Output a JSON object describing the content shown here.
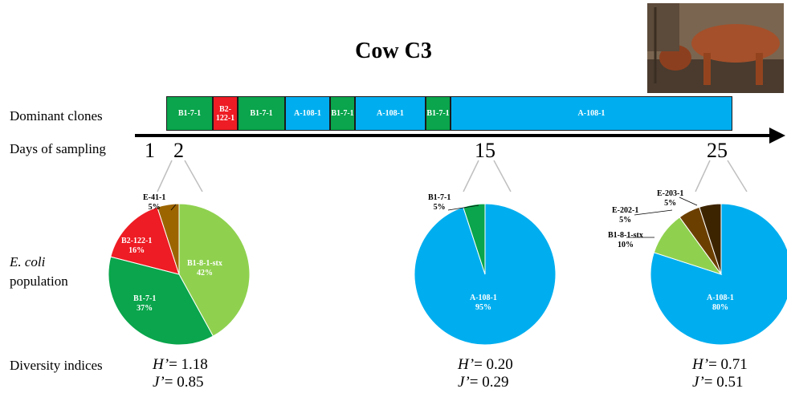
{
  "title": "Cow C3",
  "row_labels": {
    "dominant_clones": "Dominant clones",
    "days_of_sampling": "Days of sampling",
    "ecoli_italic": "E. coli",
    "population": "population",
    "diversity_indices": "Diversity indices"
  },
  "colors": {
    "green": "#0aa54c",
    "red": "#ee1c24",
    "blue": "#00aeef",
    "light_green": "#8fd14f",
    "brown": "#9c6500",
    "dark_brown": "#6b3f00",
    "darkest_brown": "#3d2400"
  },
  "clones": [
    {
      "label": "B1-7-1",
      "color": "green"
    },
    {
      "label": "B2-122-1",
      "color": "red"
    },
    {
      "label": "B1-7-1",
      "color": "green"
    },
    {
      "label": "A-108-1",
      "color": "blue"
    },
    {
      "label": "B1-7-1",
      "color": "green"
    },
    {
      "label": "A-108-1",
      "color": "blue"
    },
    {
      "label": "B1-7-1",
      "color": "green"
    },
    {
      "label": "A-108-1",
      "color": "blue"
    }
  ],
  "days": [
    "1",
    "2",
    "15",
    "25"
  ],
  "pies": [
    {
      "day": "2",
      "slices": [
        {
          "name": "B1-8-1-stx",
          "percent": 42,
          "color": "light_green"
        },
        {
          "name": "B1-7-1",
          "percent": 37,
          "color": "green"
        },
        {
          "name": "B2-122-1",
          "percent": 16,
          "color": "red"
        },
        {
          "name": "E-41-1",
          "percent": 5,
          "color": "brown"
        }
      ],
      "labels": [
        {
          "name": "B1-8-1-stx",
          "pct": "42%"
        },
        {
          "name": "B1-7-1",
          "pct": "37%"
        },
        {
          "name": "B2-122-1",
          "pct": "16%"
        },
        {
          "name": "E-41-1",
          "pct": "5%"
        }
      ],
      "h": "1.18",
      "j": "0.85"
    },
    {
      "day": "15",
      "slices": [
        {
          "name": "A-108-1",
          "percent": 95,
          "color": "blue"
        },
        {
          "name": "B1-7-1",
          "percent": 5,
          "color": "green"
        }
      ],
      "labels": [
        {
          "name": "A-108-1",
          "pct": "95%"
        },
        {
          "name": "B1-7-1",
          "pct": "5%"
        }
      ],
      "h": "0.20",
      "j": "0.29"
    },
    {
      "day": "25",
      "slices": [
        {
          "name": "A-108-1",
          "percent": 80,
          "color": "blue"
        },
        {
          "name": "B1-8-1-stx",
          "percent": 10,
          "color": "light_green"
        },
        {
          "name": "E-202-1",
          "percent": 5,
          "color": "dark_brown"
        },
        {
          "name": "E-203-1",
          "percent": 5,
          "color": "darkest_brown"
        }
      ],
      "labels": [
        {
          "name": "A-108-1",
          "pct": "80%"
        },
        {
          "name": "B1-8-1-stx",
          "pct": "10%"
        },
        {
          "name": "E-202-1",
          "pct": "5%"
        },
        {
          "name": "E-203-1",
          "pct": "5%"
        }
      ],
      "h": "0.71",
      "j": "0.51"
    }
  ],
  "index_symbols": {
    "h": "H’",
    "j": "J’",
    "eq": "= "
  }
}
